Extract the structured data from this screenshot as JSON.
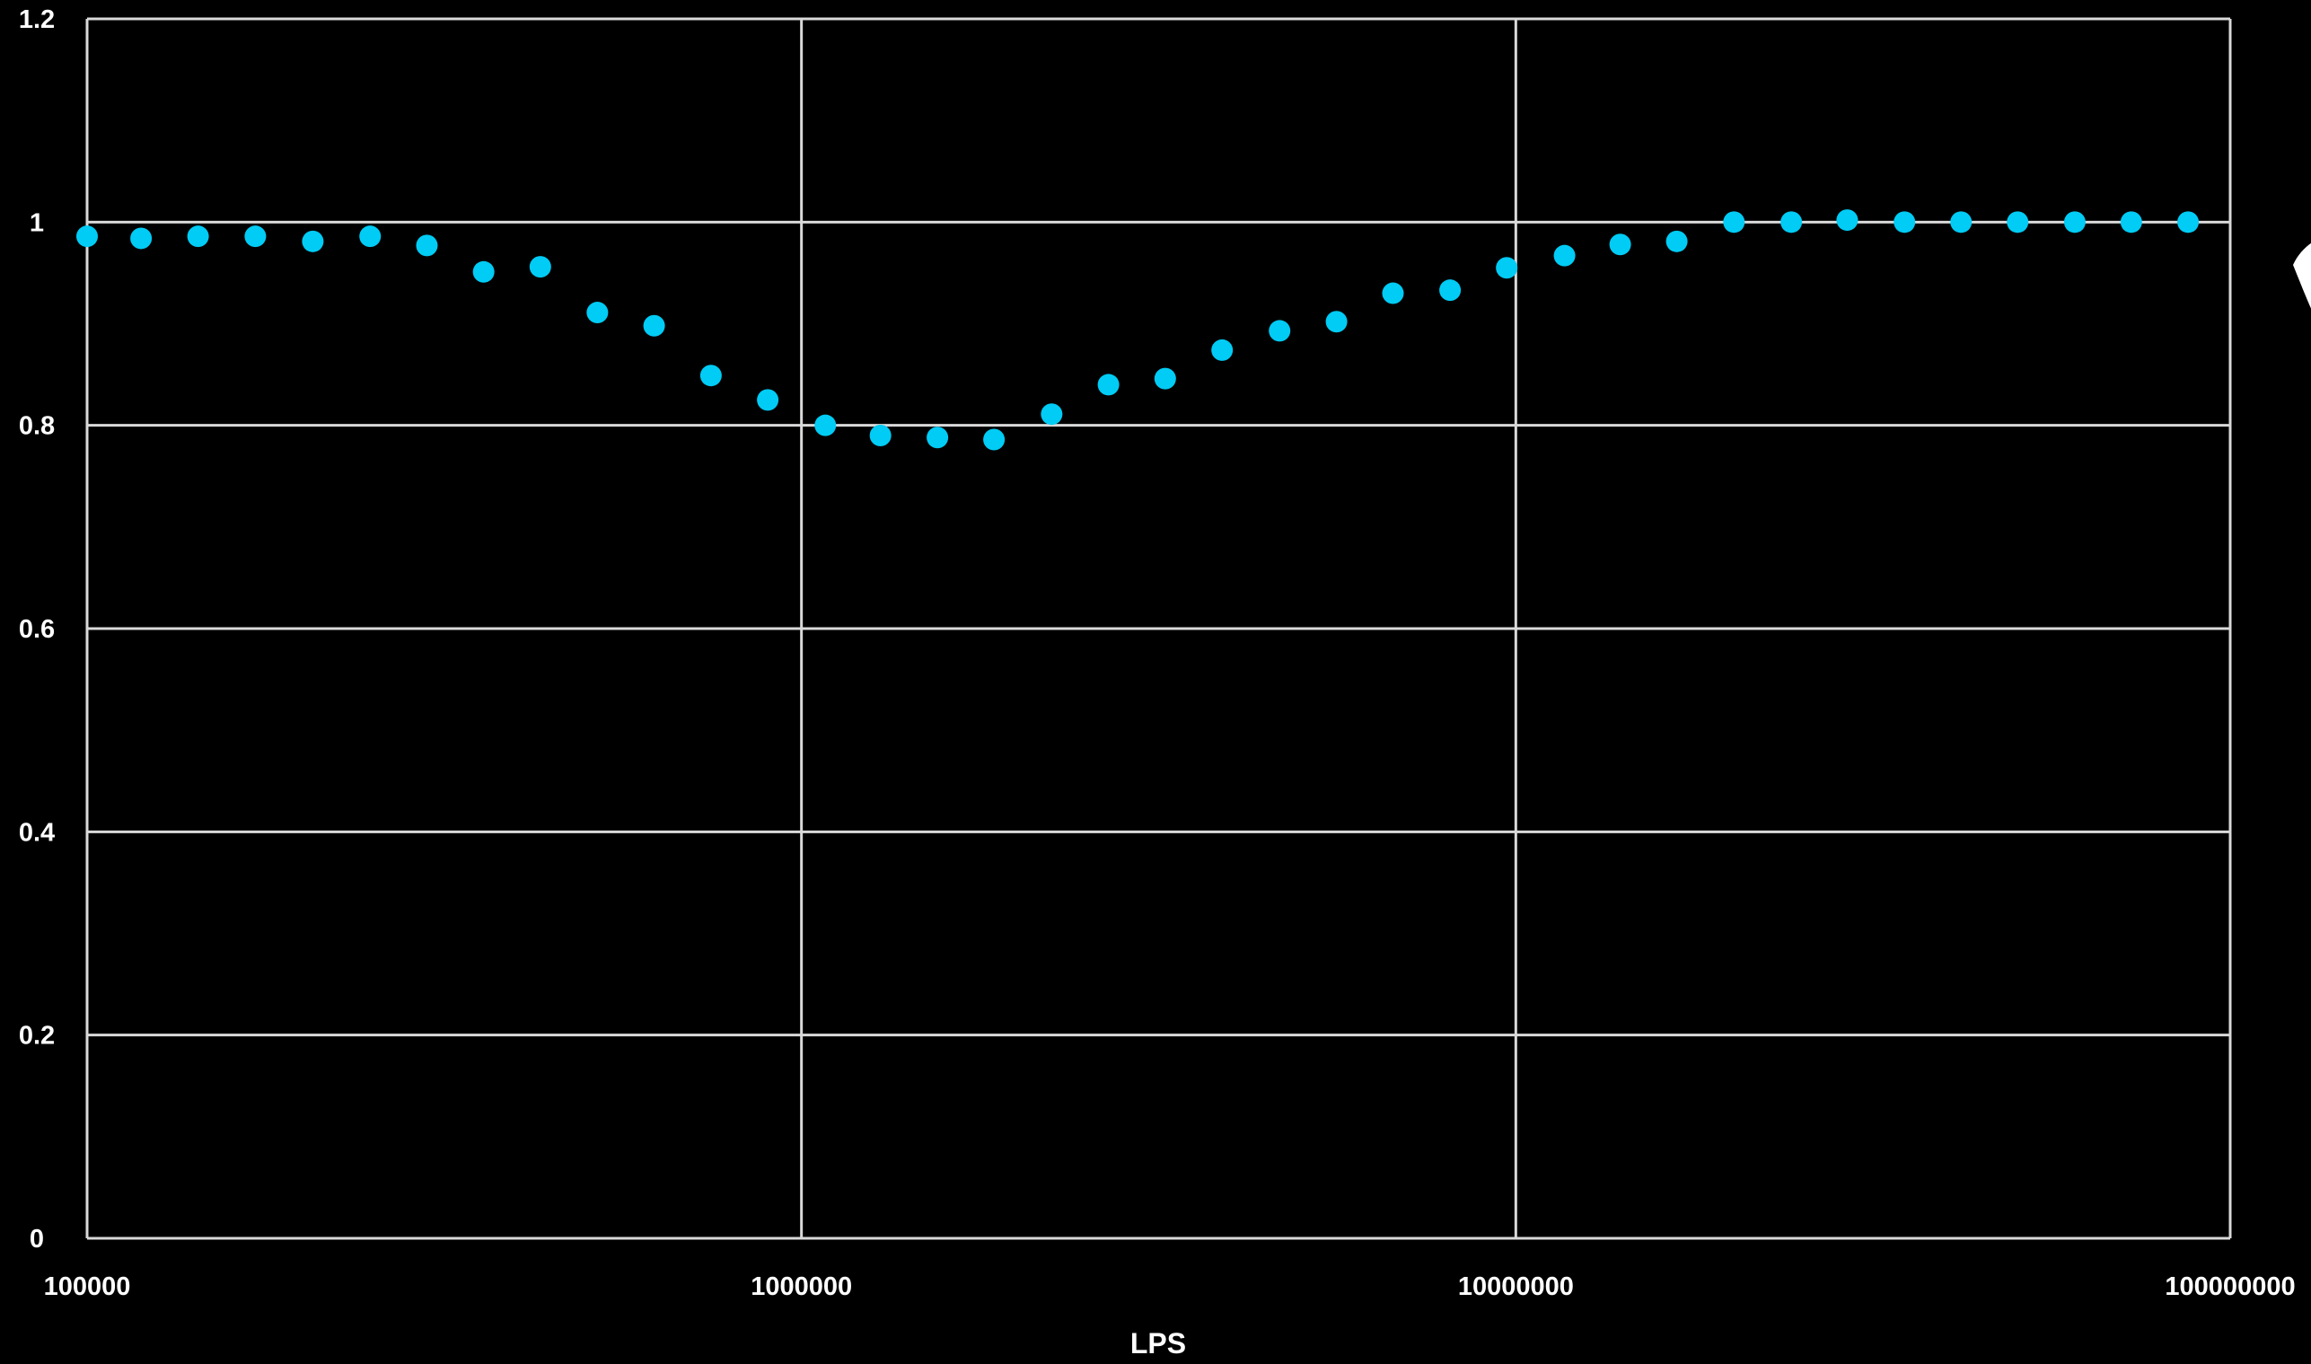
{
  "colors": {
    "background": "#000000",
    "gridline": "#d9d9d9",
    "marker": "#00ccf5",
    "text": "#ffffff"
  },
  "chart_data": {
    "type": "scatter",
    "title": "",
    "xlabel": "LPS",
    "ylabel": "",
    "x_scale": "log",
    "xlim": [
      100000,
      100000000
    ],
    "ylim": [
      0,
      1.2
    ],
    "x_ticks": [
      "100000",
      "1000000",
      "10000000",
      "100000000"
    ],
    "y_ticks": [
      "0",
      "0.2",
      "0.4",
      "0.6",
      "0.8",
      "1",
      "1.2"
    ],
    "grid": true,
    "legend": "none",
    "series": [
      {
        "x": [
          100000,
          119000,
          143000,
          172000,
          207000,
          249000,
          299000,
          359000,
          431000,
          518000,
          622000,
          747000,
          897000,
          1080000,
          1290000,
          1550000,
          1860000,
          2240000,
          2690000,
          3230000,
          3880000,
          4670000,
          5610000,
          6730000,
          8090000,
          9710000,
          11700000,
          14000000,
          16800000,
          20200000,
          24300000,
          29100000,
          35000000,
          42000000,
          50400000,
          60600000,
          72700000,
          87300000
        ],
        "y": [
          0.986,
          0.984,
          0.986,
          0.986,
          0.981,
          0.986,
          0.977,
          0.951,
          0.956,
          0.911,
          0.898,
          0.849,
          0.825,
          0.8,
          0.79,
          0.788,
          0.786,
          0.811,
          0.84,
          0.846,
          0.874,
          0.893,
          0.902,
          0.93,
          0.933,
          0.955,
          0.967,
          0.978,
          0.981,
          1.0,
          1.0,
          1.002,
          1.0,
          1.0,
          1.0,
          1.0,
          1.0,
          1.0
        ]
      }
    ]
  }
}
